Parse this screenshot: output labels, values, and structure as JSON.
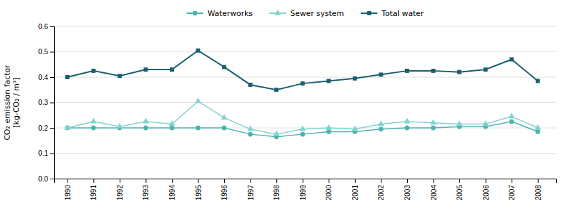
{
  "chart_data": {
    "type": "line",
    "y_label": "CO₂ emission factor\n[kg-CO₂ / m³]",
    "x": [
      1990,
      1991,
      1992,
      1993,
      1994,
      1995,
      1996,
      1997,
      1998,
      1999,
      2000,
      2001,
      2002,
      2003,
      2004,
      2005,
      2006,
      2007,
      2008
    ],
    "series": [
      {
        "name": "Waterworks",
        "color": "#4db3ae",
        "marker": "circle",
        "values": [
          0.2,
          0.2,
          0.2,
          0.2,
          0.2,
          0.2,
          0.2,
          0.175,
          0.165,
          0.175,
          0.185,
          0.185,
          0.195,
          0.2,
          0.2,
          0.205,
          0.205,
          0.225,
          0.185
        ]
      },
      {
        "name": "Sewer system",
        "color": "#80d4cf",
        "marker": "triangle",
        "values": [
          0.2,
          0.225,
          0.205,
          0.225,
          0.215,
          0.305,
          0.24,
          0.195,
          0.175,
          0.195,
          0.2,
          0.195,
          0.215,
          0.225,
          0.22,
          0.215,
          0.215,
          0.245,
          0.2
        ]
      },
      {
        "name": "Total water",
        "color": "#1a5f6e",
        "marker": "square",
        "values": [
          0.4,
          0.425,
          0.405,
          0.43,
          0.43,
          0.505,
          0.44,
          0.37,
          0.35,
          0.375,
          0.385,
          0.395,
          0.41,
          0.425,
          0.425,
          0.42,
          0.43,
          0.47,
          0.385
        ]
      }
    ],
    "xlim": [
      1989.5,
      2008.7
    ],
    "xticks": [
      1990,
      1991,
      1992,
      1993,
      1994,
      1995,
      1996,
      1997,
      1998,
      1999,
      2000,
      2001,
      2002,
      2003,
      2004,
      2005,
      2006,
      2007,
      2008
    ],
    "ylim": [
      0.0,
      0.6
    ],
    "yticks": [
      {
        "value": 0.0,
        "label": "0.0"
      },
      0.1,
      0.2,
      0.3,
      0.4,
      0.5,
      0.6
    ],
    "grid": true,
    "legend": "top"
  }
}
